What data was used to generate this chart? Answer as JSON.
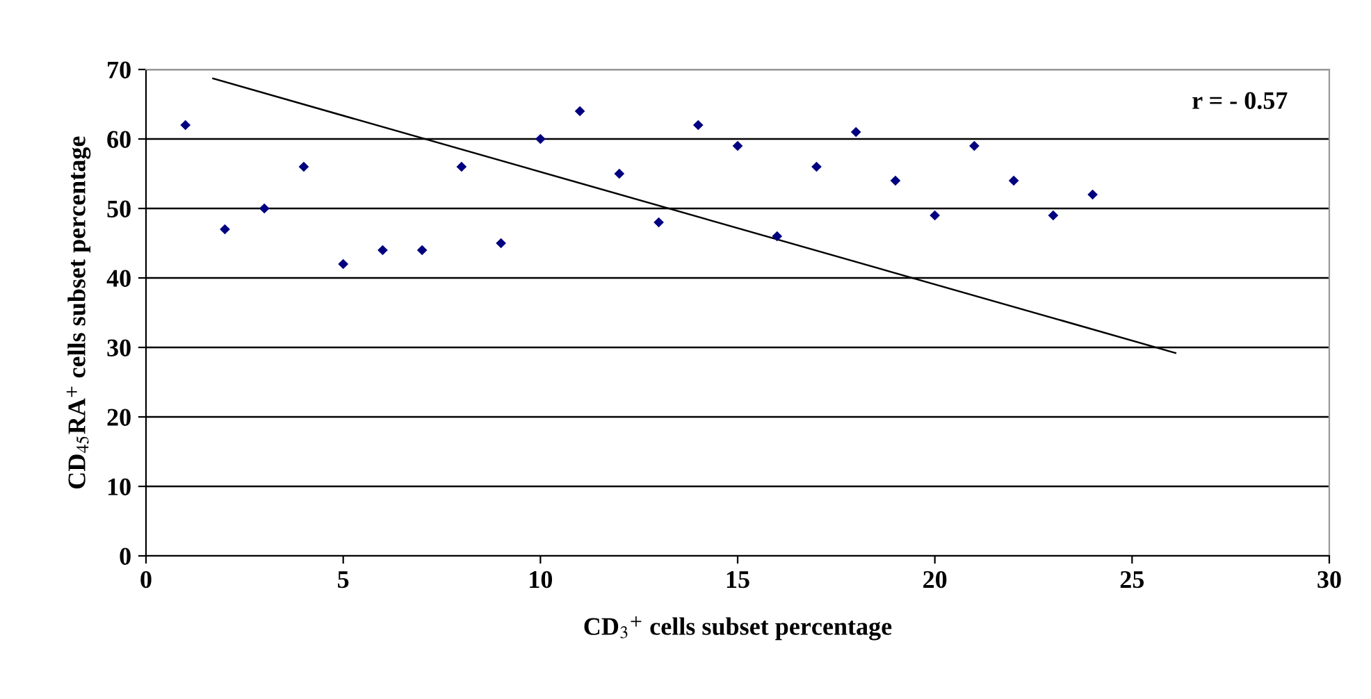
{
  "chart_data": {
    "type": "scatter",
    "xlabel": "CD$_{3}$$^{+}$ cells subset percentage",
    "ylabel": "CD$_{45}$RA$^{+}$ cells subset percentage",
    "xlim": [
      0,
      30
    ],
    "xticks": [
      0,
      5,
      10,
      15,
      20,
      25,
      30
    ],
    "ylim": [
      0,
      70
    ],
    "yticks": [
      0,
      10,
      20,
      30,
      40,
      50,
      60,
      70
    ],
    "grid": "y",
    "marker": "diamond",
    "annotations": [
      "r = - 0.57"
    ],
    "series": [
      {
        "color": "#000080",
        "x": [
          1,
          2,
          3,
          4,
          5,
          6,
          7,
          8,
          9,
          10,
          11,
          12,
          13,
          14,
          15,
          16,
          17,
          18,
          19,
          20,
          21,
          22,
          23,
          24
        ],
        "values": [
          62,
          47,
          50,
          56,
          42,
          44,
          44,
          56,
          45,
          60,
          64,
          55,
          48,
          62,
          59,
          46,
          56,
          61,
          54,
          49,
          59,
          54,
          49,
          52
        ]
      },
      {
        "type": "line",
        "color": "#000000",
        "marker": "none",
        "x": [
          1.7,
          26.1
        ],
        "values": [
          68.7,
          29.2
        ]
      }
    ]
  }
}
